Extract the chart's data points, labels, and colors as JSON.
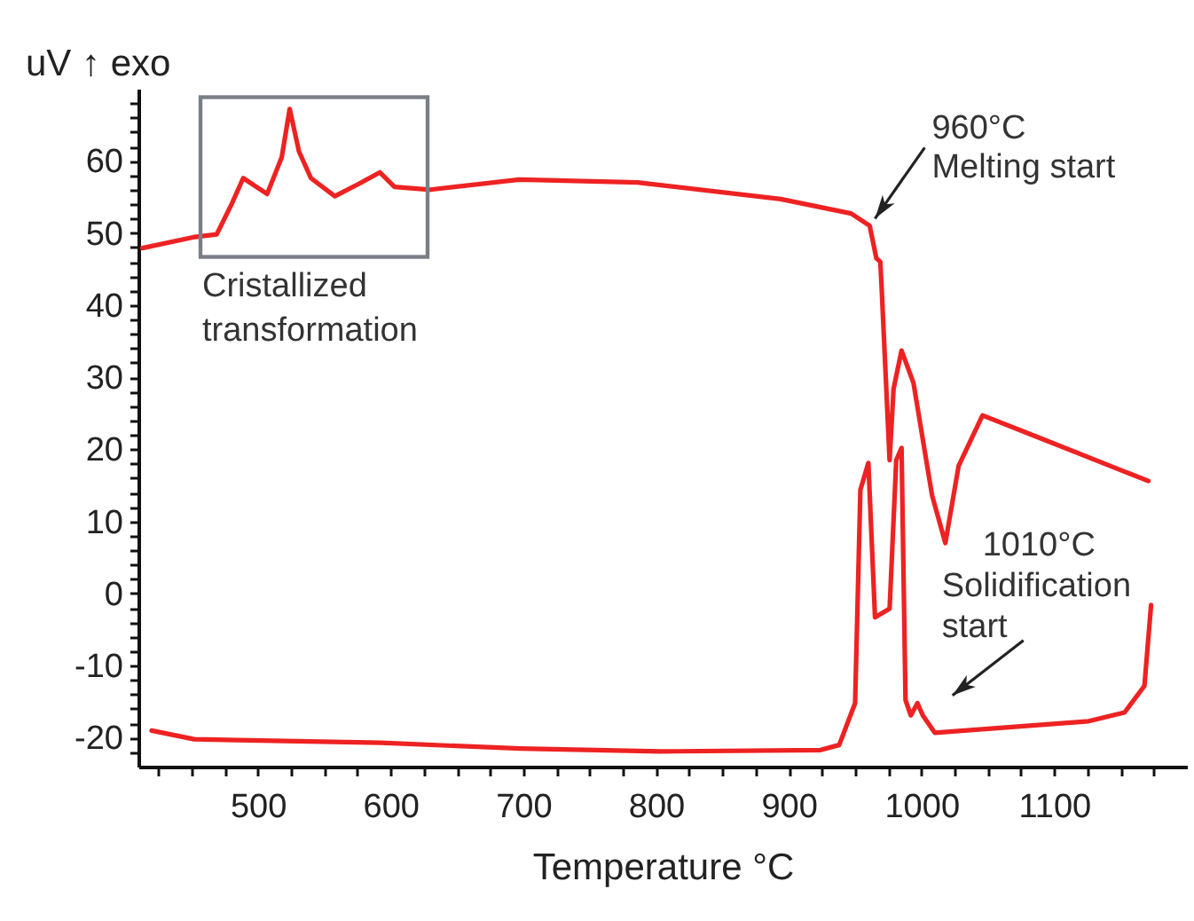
{
  "chart_data": {
    "type": "line",
    "xlabel": "Temperature °C",
    "ylabel": "uV ↑ exo",
    "xlim": [
      410,
      1200
    ],
    "ylim": [
      -24,
      70
    ],
    "xticks": [
      {
        "value": 425,
        "label": null
      },
      {
        "value": 450,
        "label": null
      },
      {
        "value": 475,
        "label": null
      },
      500,
      {
        "value": 525,
        "label": null
      },
      {
        "value": 550,
        "label": null
      },
      {
        "value": 575,
        "label": null
      },
      600,
      {
        "value": 625,
        "label": null
      },
      {
        "value": 650,
        "label": null
      },
      {
        "value": 675,
        "label": null
      },
      700,
      {
        "value": 725,
        "label": null
      },
      {
        "value": 750,
        "label": null
      },
      {
        "value": 775,
        "label": null
      },
      800,
      {
        "value": 825,
        "label": null
      },
      {
        "value": 850,
        "label": null
      },
      {
        "value": 875,
        "label": null
      },
      900,
      {
        "value": 925,
        "label": null
      },
      {
        "value": 950,
        "label": null
      },
      {
        "value": 975,
        "label": null
      },
      1000,
      {
        "value": 1025,
        "label": null
      },
      {
        "value": 1050,
        "label": null
      },
      {
        "value": 1075,
        "label": null
      },
      1100,
      {
        "value": 1125,
        "label": null
      },
      {
        "value": 1150,
        "label": null
      },
      {
        "value": 1175,
        "label": null
      }
    ],
    "yticks": [
      {
        "value": -22,
        "label": null
      },
      -20,
      {
        "value": -18,
        "label": null
      },
      {
        "value": -16,
        "label": null
      },
      {
        "value": -14,
        "label": null
      },
      {
        "value": -12,
        "label": null
      },
      -10,
      {
        "value": -8,
        "label": null
      },
      {
        "value": -6,
        "label": null
      },
      {
        "value": -4,
        "label": null
      },
      {
        "value": -2,
        "label": null
      },
      0,
      {
        "value": 2,
        "label": null
      },
      {
        "value": 4,
        "label": null
      },
      {
        "value": 6,
        "label": null
      },
      {
        "value": 8,
        "label": null
      },
      10,
      {
        "value": 12,
        "label": null
      },
      {
        "value": 14,
        "label": null
      },
      {
        "value": 16,
        "label": null
      },
      {
        "value": 18,
        "label": null
      },
      20,
      {
        "value": 22,
        "label": null
      },
      {
        "value": 24,
        "label": null
      },
      {
        "value": 26,
        "label": null
      },
      {
        "value": 28,
        "label": null
      },
      30,
      {
        "value": 32,
        "label": null
      },
      {
        "value": 34,
        "label": null
      },
      {
        "value": 36,
        "label": null
      },
      {
        "value": 38,
        "label": null
      },
      40,
      {
        "value": 42,
        "label": null
      },
      {
        "value": 44,
        "label": null
      },
      {
        "value": 46,
        "label": null
      },
      {
        "value": 48,
        "label": null
      },
      50,
      {
        "value": 52,
        "label": null
      },
      {
        "value": 54,
        "label": null
      },
      {
        "value": 56,
        "label": null
      },
      {
        "value": 58,
        "label": null
      },
      60,
      {
        "value": 62,
        "label": null
      },
      {
        "value": 64,
        "label": null
      },
      {
        "value": 66,
        "label": null
      },
      {
        "value": 68,
        "label": null
      }
    ],
    "grid": false,
    "marker": "none",
    "line_style": "solid",
    "series": [
      {
        "color": "#ee2222",
        "x": [
          413,
          451,
          469,
          480,
          489,
          507,
          518,
          524,
          531,
          540,
          558,
          576,
          592,
          603,
          630,
          697,
          786,
          894,
          947,
          961,
          966,
          969,
          970,
          976,
          979,
          985,
          994,
          1008,
          1018,
          1028,
          1046,
          1086,
          1171
        ],
        "values": [
          47.9,
          49.4,
          49.8,
          53.9,
          57.6,
          55.4,
          60.5,
          67.2,
          61.3,
          57.6,
          55.1,
          56.8,
          58.4,
          56.4,
          56,
          57.4,
          57,
          54.7,
          52.7,
          51,
          46.5,
          46,
          42.4,
          18.5,
          28.4,
          33.7,
          29.2,
          13.6,
          7,
          17.7,
          24.7,
          21.8,
          15.6
        ]
      },
      {
        "color": "#ee2222",
        "x": [
          1173,
          1168,
          1153,
          1126,
          1010,
          1001,
          997,
          992,
          988,
          985,
          981,
          976,
          965,
          960,
          954,
          950,
          938,
          924,
          803,
          698,
          593,
          452,
          420
        ],
        "values": [
          -1.6,
          -12.8,
          -16.5,
          -17.7,
          -19.3,
          -16.9,
          -15.2,
          -16.9,
          -14.8,
          20.2,
          18.5,
          -2.1,
          -3.3,
          18.1,
          14.4,
          -15.2,
          -21,
          -21.7,
          -21.9,
          -21.5,
          -20.7,
          -20.2,
          -19
        ]
      }
    ],
    "annotations": [
      {
        "text": "960°C\nMelting start",
        "x": 965,
        "y": 52
      },
      {
        "text": "1010°C\nSolidification\nstart",
        "x": 1010,
        "y": -19.3
      },
      {
        "text": "Cristallized\ntransformation",
        "x": 541,
        "y": 58
      }
    ]
  }
}
